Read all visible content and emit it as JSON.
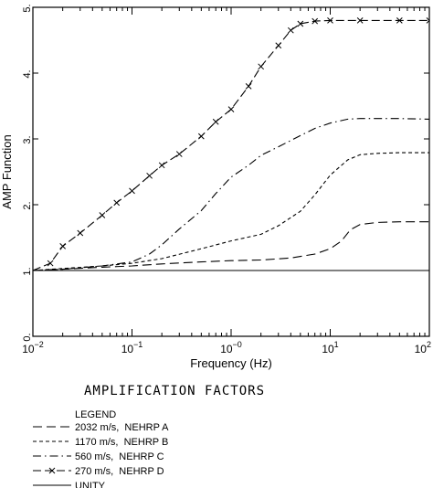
{
  "chart_data": {
    "type": "line",
    "title": "",
    "subtitle": "AMPLIFICATION FACTORS",
    "xlabel": "Frequency (Hz)",
    "ylabel": "AMP Function",
    "x_scale": "log",
    "xlim": [
      0.01,
      100
    ],
    "ylim": [
      0,
      5
    ],
    "grid": false,
    "x_ticks": [
      {
        "value": 0.01,
        "base": "10",
        "exp": "−2"
      },
      {
        "value": 0.1,
        "base": "10",
        "exp": "−1"
      },
      {
        "value": 1,
        "base": "10",
        "exp": "−0"
      },
      {
        "value": 10,
        "base": "10",
        "exp": "1"
      },
      {
        "value": 100,
        "base": "10",
        "exp": "2"
      }
    ],
    "y_ticks": [
      {
        "value": 0,
        "label": "0."
      },
      {
        "value": 1,
        "label": "1."
      },
      {
        "value": 2,
        "label": "2."
      },
      {
        "value": 3,
        "label": "3."
      },
      {
        "value": 4,
        "label": "4."
      },
      {
        "value": 5,
        "label": "5."
      }
    ],
    "legend": {
      "title": "LEGEND",
      "placement": "below"
    },
    "series": [
      {
        "name": "2032 m/s,  NEHRP A",
        "style": "longdash",
        "points": [
          [
            0.01,
            1.0
          ],
          [
            0.02,
            1.02
          ],
          [
            0.05,
            1.05
          ],
          [
            0.1,
            1.07
          ],
          [
            0.2,
            1.1
          ],
          [
            0.5,
            1.13
          ],
          [
            1,
            1.15
          ],
          [
            2,
            1.16
          ],
          [
            4,
            1.19
          ],
          [
            7,
            1.25
          ],
          [
            10,
            1.33
          ],
          [
            13,
            1.45
          ],
          [
            16,
            1.62
          ],
          [
            20,
            1.7
          ],
          [
            30,
            1.73
          ],
          [
            50,
            1.74
          ],
          [
            100,
            1.74
          ]
        ]
      },
      {
        "name": "1170 m/s,  NEHRP B",
        "style": "shortdash",
        "points": [
          [
            0.01,
            1.0
          ],
          [
            0.02,
            1.03
          ],
          [
            0.05,
            1.07
          ],
          [
            0.1,
            1.11
          ],
          [
            0.2,
            1.18
          ],
          [
            0.5,
            1.33
          ],
          [
            1,
            1.45
          ],
          [
            2,
            1.55
          ],
          [
            3,
            1.68
          ],
          [
            5,
            1.9
          ],
          [
            7,
            2.15
          ],
          [
            10,
            2.45
          ],
          [
            15,
            2.68
          ],
          [
            20,
            2.76
          ],
          [
            30,
            2.78
          ],
          [
            50,
            2.79
          ],
          [
            100,
            2.79
          ]
        ]
      },
      {
        "name": "560 m/s,  NEHRP C",
        "style": "dashdot",
        "points": [
          [
            0.01,
            1.0
          ],
          [
            0.02,
            1.02
          ],
          [
            0.05,
            1.07
          ],
          [
            0.1,
            1.13
          ],
          [
            0.15,
            1.25
          ],
          [
            0.2,
            1.39
          ],
          [
            0.3,
            1.63
          ],
          [
            0.5,
            1.91
          ],
          [
            0.7,
            2.17
          ],
          [
            1,
            2.42
          ],
          [
            1.5,
            2.6
          ],
          [
            2,
            2.75
          ],
          [
            3,
            2.88
          ],
          [
            5,
            3.05
          ],
          [
            7,
            3.16
          ],
          [
            10,
            3.24
          ],
          [
            15,
            3.3
          ],
          [
            20,
            3.31
          ],
          [
            30,
            3.31
          ],
          [
            50,
            3.31
          ],
          [
            100,
            3.3
          ]
        ]
      },
      {
        "name": "270 m/s,  NEHRP D",
        "style": "dash-x",
        "points": [
          [
            0.01,
            1.0
          ],
          [
            0.015,
            1.11
          ],
          [
            0.02,
            1.37
          ],
          [
            0.03,
            1.57
          ],
          [
            0.05,
            1.84
          ],
          [
            0.07,
            2.03
          ],
          [
            0.1,
            2.21
          ],
          [
            0.15,
            2.44
          ],
          [
            0.2,
            2.6
          ],
          [
            0.3,
            2.77
          ],
          [
            0.5,
            3.04
          ],
          [
            0.7,
            3.26
          ],
          [
            1,
            3.45
          ],
          [
            1.5,
            3.8
          ],
          [
            2,
            4.1
          ],
          [
            3,
            4.42
          ],
          [
            4,
            4.65
          ],
          [
            5,
            4.75
          ],
          [
            7,
            4.79
          ],
          [
            10,
            4.8
          ],
          [
            20,
            4.8
          ],
          [
            50,
            4.8
          ],
          [
            100,
            4.8
          ]
        ]
      },
      {
        "name": "UNITY",
        "style": "solid",
        "points": [
          [
            0.01,
            1.0
          ],
          [
            100,
            1.0
          ]
        ]
      }
    ]
  }
}
